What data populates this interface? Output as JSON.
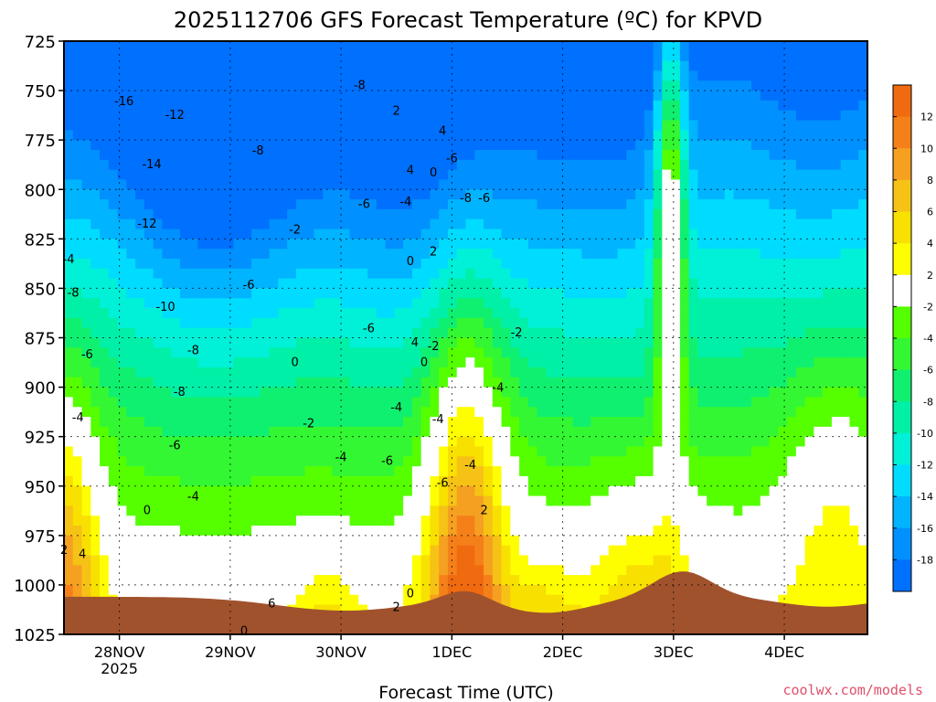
{
  "chart_data": {
    "type": "heatmap",
    "title": "2025112706 GFS Forecast Temperature (ºC) for KPVD",
    "xlabel": "Forecast Time (UTC)",
    "ylabel": "",
    "credit": "coolwx.com/models",
    "y_pressure_ticks": [
      "725",
      "750",
      "775",
      "800",
      "825",
      "850",
      "875",
      "900",
      "925",
      "950",
      "975",
      "1000",
      "1025"
    ],
    "y_range": [
      725,
      1025
    ],
    "y_reversed": true,
    "x_ticks": [
      {
        "label": "28NOV",
        "sub": "2025",
        "hour": 24
      },
      {
        "label": "29NOV",
        "sub": "",
        "hour": 48
      },
      {
        "label": "30NOV",
        "sub": "",
        "hour": 72
      },
      {
        "label": "1DEC",
        "sub": "",
        "hour": 96
      },
      {
        "label": "2DEC",
        "sub": "",
        "hour": 120
      },
      {
        "label": "3DEC",
        "sub": "",
        "hour": 144
      },
      {
        "label": "4DEC",
        "sub": "",
        "hour": 168
      }
    ],
    "x_range_hours": [
      12,
      186
    ],
    "grid": "dotted",
    "colorbar": {
      "position": "right",
      "labels": [
        "12",
        "10",
        "8",
        "6",
        "4",
        "2",
        "-2",
        "-4",
        "-6",
        "-8",
        "-10",
        "-12",
        "-14",
        "-16",
        "-18"
      ],
      "bins": [
        {
          "lo": 12,
          "hi": 14,
          "color": "#f06a10"
        },
        {
          "lo": 10,
          "hi": 12,
          "color": "#f5801a"
        },
        {
          "lo": 8,
          "hi": 10,
          "color": "#f5a020"
        },
        {
          "lo": 6,
          "hi": 8,
          "color": "#f6c216"
        },
        {
          "lo": 4,
          "hi": 6,
          "color": "#f8e000"
        },
        {
          "lo": 2,
          "hi": 4,
          "color": "#fefe00"
        },
        {
          "lo": -2,
          "hi": 2,
          "color": "#ffffff"
        },
        {
          "lo": -4,
          "hi": -2,
          "color": "#55ff00"
        },
        {
          "lo": -6,
          "hi": -4,
          "color": "#33f733"
        },
        {
          "lo": -8,
          "hi": -6,
          "color": "#10f070"
        },
        {
          "lo": -10,
          "hi": -8,
          "color": "#00f0a8"
        },
        {
          "lo": -12,
          "hi": -10,
          "color": "#00f0d8"
        },
        {
          "lo": -14,
          "hi": -12,
          "color": "#00dcff"
        },
        {
          "lo": -16,
          "hi": -14,
          "color": "#00b4ff"
        },
        {
          "lo": -18,
          "hi": -16,
          "color": "#0090ff"
        },
        {
          "lo": -20,
          "hi": -18,
          "color": "#0070ff"
        }
      ]
    },
    "terrain_color": "#a0522d",
    "zero_line_color": "#c0186a",
    "contour_labels": [
      {
        "t": "-16",
        "h": 25,
        "p": 755
      },
      {
        "t": "-12",
        "h": 36,
        "p": 762
      },
      {
        "t": "-14",
        "h": 31,
        "p": 787
      },
      {
        "t": "-12",
        "h": 30,
        "p": 817
      },
      {
        "t": "-8",
        "h": 14,
        "p": 852
      },
      {
        "t": "-10",
        "h": 34,
        "p": 859
      },
      {
        "t": "-8",
        "h": 40,
        "p": 881
      },
      {
        "t": "-8",
        "h": 37,
        "p": 902
      },
      {
        "t": "-6",
        "h": 17,
        "p": 883
      },
      {
        "t": "-6",
        "h": 52,
        "p": 848
      },
      {
        "t": "-6",
        "h": 36,
        "p": 929
      },
      {
        "t": "-4",
        "h": 13,
        "p": 835
      },
      {
        "t": "-4",
        "h": 15,
        "p": 915
      },
      {
        "t": "-4",
        "h": 40,
        "p": 955
      },
      {
        "t": "-8",
        "h": 54,
        "p": 780
      },
      {
        "t": "-8",
        "h": 76,
        "p": 747
      },
      {
        "t": "-6",
        "h": 77,
        "p": 807
      },
      {
        "t": "-6",
        "h": 78,
        "p": 870
      },
      {
        "t": "-2",
        "h": 62,
        "p": 820
      },
      {
        "t": "-2",
        "h": 65,
        "p": 918
      },
      {
        "t": "-4",
        "h": 72,
        "p": 935
      },
      {
        "t": "-6",
        "h": 82,
        "p": 937
      },
      {
        "t": "-4",
        "h": 84,
        "p": 910
      },
      {
        "t": "-4",
        "h": 86,
        "p": 806
      },
      {
        "t": "0",
        "h": 30,
        "p": 962
      },
      {
        "t": "2",
        "h": 12,
        "p": 982
      },
      {
        "t": "4",
        "h": 16,
        "p": 984
      },
      {
        "t": "0",
        "h": 51,
        "p": 1023
      },
      {
        "t": "0",
        "h": 62,
        "p": 887
      },
      {
        "t": "6",
        "h": 57,
        "p": 1009
      },
      {
        "t": "2",
        "h": 84,
        "p": 760
      },
      {
        "t": "4",
        "h": 87,
        "p": 790
      },
      {
        "t": "0",
        "h": 92,
        "p": 791
      },
      {
        "t": "4",
        "h": 94,
        "p": 770
      },
      {
        "t": "-6",
        "h": 96,
        "p": 784
      },
      {
        "t": "-8",
        "h": 99,
        "p": 804
      },
      {
        "t": "-6",
        "h": 103,
        "p": 804
      },
      {
        "t": "2",
        "h": 92,
        "p": 831
      },
      {
        "t": "0",
        "h": 87,
        "p": 836
      },
      {
        "t": "4",
        "h": 88,
        "p": 877
      },
      {
        "t": "-2",
        "h": 92,
        "p": 879
      },
      {
        "t": "0",
        "h": 90,
        "p": 887
      },
      {
        "t": "-4",
        "h": 93,
        "p": 916
      },
      {
        "t": "-6",
        "h": 94,
        "p": 948
      },
      {
        "t": "-4",
        "h": 100,
        "p": 939
      },
      {
        "t": "-4",
        "h": 106,
        "p": 900
      },
      {
        "t": "-2",
        "h": 110,
        "p": 872
      },
      {
        "t": "2",
        "h": 103,
        "p": 962
      },
      {
        "t": "0",
        "h": 87,
        "p": 1004
      },
      {
        "t": "2",
        "h": 84,
        "p": 1011
      }
    ]
  }
}
